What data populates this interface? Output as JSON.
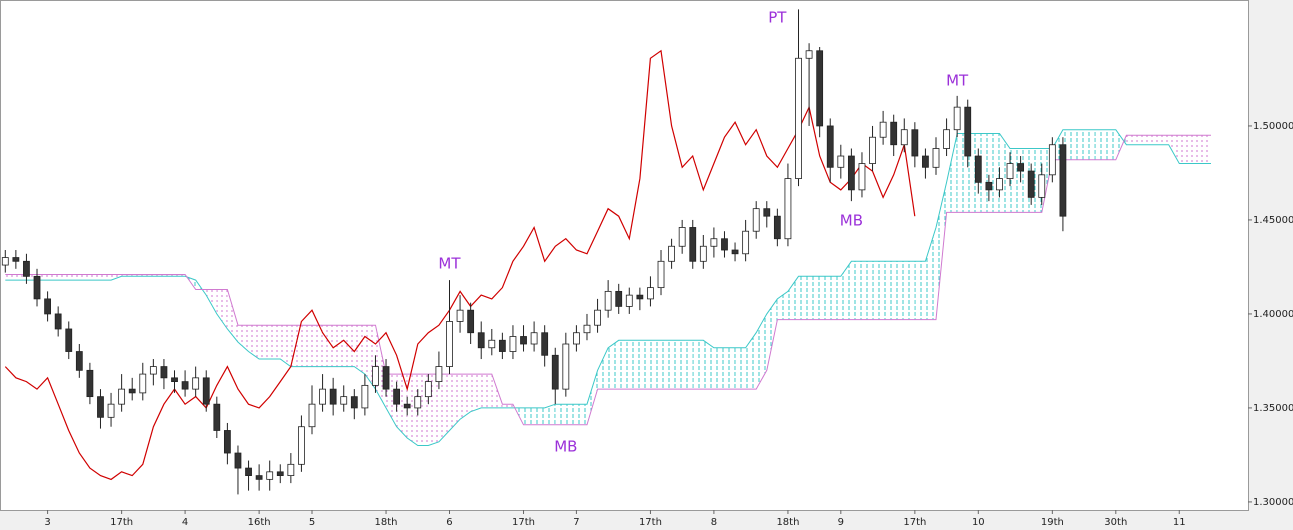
{
  "chart_data": {
    "type": "candlestick",
    "categories": [
      null,
      null,
      null,
      null,
      "3",
      null,
      null,
      null,
      null,
      null,
      null,
      "17th",
      null,
      null,
      null,
      null,
      null,
      "4",
      null,
      null,
      null,
      null,
      null,
      null,
      "16th",
      null,
      null,
      null,
      null,
      "5",
      null,
      null,
      null,
      null,
      null,
      null,
      "18th",
      null,
      null,
      null,
      null,
      null,
      "6",
      null,
      null,
      null,
      null,
      null,
      null,
      "17th",
      null,
      null,
      null,
      null,
      "7",
      null,
      null,
      null,
      null,
      null,
      null,
      "17th",
      null,
      null,
      null,
      null,
      null,
      "8",
      null,
      null,
      null,
      null,
      null,
      null,
      "18th",
      null,
      null,
      null,
      null,
      "9",
      null,
      null,
      null,
      null,
      null,
      null,
      "17th",
      null,
      null,
      null,
      null,
      null,
      "10",
      null,
      null,
      null,
      null,
      null,
      null,
      "19th",
      null,
      null,
      null,
      null,
      null,
      "30th",
      null,
      null,
      null,
      null,
      null,
      "11",
      null,
      null,
      null,
      null,
      null,
      null
    ],
    "open": [
      1.426,
      1.43,
      1.428,
      1.42,
      1.408,
      1.4,
      1.392,
      1.38,
      1.37,
      1.356,
      1.345,
      1.352,
      1.36,
      1.358,
      1.368,
      1.372,
      1.366,
      1.364,
      1.36,
      1.366,
      1.352,
      1.338,
      1.326,
      1.318,
      1.314,
      1.312,
      1.316,
      1.314,
      1.32,
      1.34,
      1.352,
      1.36,
      1.352,
      1.356,
      1.35,
      1.362,
      1.372,
      1.36,
      1.352,
      1.35,
      1.356,
      1.364,
      1.372,
      1.396,
      1.402,
      1.39,
      1.382,
      1.386,
      1.38,
      1.388,
      1.384,
      1.39,
      1.378,
      1.36,
      1.384,
      1.39,
      1.394,
      1.402,
      1.412,
      1.404,
      1.41,
      1.408,
      1.414,
      1.428,
      1.436,
      1.446,
      1.428,
      1.436,
      1.44,
      1.434,
      1.432,
      1.444,
      1.456,
      1.452,
      1.44,
      1.472,
      1.536,
      1.54,
      1.5,
      1.478,
      1.484,
      1.466,
      1.48,
      1.494,
      1.502,
      1.49,
      1.498,
      1.484,
      1.478,
      1.488,
      1.498,
      1.51,
      1.484,
      1.47,
      1.466,
      1.472,
      1.48,
      1.476,
      1.462,
      1.474,
      1.49,
      null,
      null,
      null,
      null,
      null,
      null,
      null,
      null,
      null,
      null,
      null,
      null,
      null,
      null,
      null,
      null,
      null
    ],
    "high": [
      1.434,
      1.434,
      1.432,
      1.424,
      1.412,
      1.404,
      1.396,
      1.384,
      1.374,
      1.36,
      1.358,
      1.368,
      1.366,
      1.374,
      1.376,
      1.376,
      1.37,
      1.37,
      1.372,
      1.37,
      1.356,
      1.342,
      1.33,
      1.322,
      1.32,
      1.322,
      1.32,
      1.326,
      1.346,
      1.362,
      1.368,
      1.366,
      1.362,
      1.36,
      1.368,
      1.378,
      1.376,
      1.364,
      1.356,
      1.36,
      1.368,
      1.38,
      1.418,
      1.41,
      1.406,
      1.396,
      1.392,
      1.39,
      1.394,
      1.394,
      1.396,
      1.394,
      1.382,
      1.39,
      1.394,
      1.4,
      1.408,
      1.418,
      1.416,
      1.414,
      1.414,
      1.42,
      1.434,
      1.44,
      1.45,
      1.45,
      1.442,
      1.446,
      1.444,
      1.438,
      1.45,
      1.46,
      1.46,
      1.456,
      1.48,
      1.562,
      1.544,
      1.542,
      1.504,
      1.49,
      1.488,
      1.486,
      1.5,
      1.508,
      1.506,
      1.504,
      1.502,
      1.488,
      1.494,
      1.504,
      1.516,
      1.514,
      1.488,
      1.474,
      1.478,
      1.486,
      1.484,
      1.48,
      1.48,
      1.494,
      1.494,
      null,
      null,
      null,
      null,
      null,
      null,
      null,
      null,
      null,
      null,
      null,
      null,
      null,
      null,
      null,
      null,
      null
    ],
    "low": [
      1.422,
      1.424,
      1.416,
      1.404,
      1.396,
      1.388,
      1.376,
      1.366,
      1.352,
      1.339,
      1.34,
      1.348,
      1.354,
      1.354,
      1.362,
      1.36,
      1.358,
      1.356,
      1.356,
      1.348,
      1.334,
      1.32,
      1.304,
      1.306,
      1.306,
      1.306,
      1.31,
      1.31,
      1.316,
      1.336,
      1.348,
      1.346,
      1.348,
      1.344,
      1.346,
      1.358,
      1.356,
      1.348,
      1.346,
      1.346,
      1.352,
      1.36,
      1.368,
      1.39,
      1.384,
      1.376,
      1.378,
      1.376,
      1.376,
      1.38,
      1.38,
      1.372,
      1.352,
      1.356,
      1.38,
      1.386,
      1.39,
      1.398,
      1.4,
      1.4,
      1.402,
      1.404,
      1.41,
      1.424,
      1.432,
      1.424,
      1.424,
      1.43,
      1.43,
      1.428,
      1.428,
      1.44,
      1.446,
      1.436,
      1.436,
      1.468,
      1.5,
      1.494,
      1.47,
      1.472,
      1.46,
      1.462,
      1.476,
      1.49,
      1.484,
      1.486,
      1.478,
      1.472,
      1.474,
      1.484,
      1.494,
      1.478,
      1.464,
      1.46,
      1.462,
      1.468,
      1.47,
      1.458,
      1.458,
      1.47,
      1.444,
      null,
      null,
      null,
      null,
      null,
      null,
      null,
      null,
      null,
      null,
      null,
      null,
      null,
      null,
      null,
      null,
      null
    ],
    "close": [
      1.43,
      1.428,
      1.42,
      1.408,
      1.4,
      1.392,
      1.38,
      1.37,
      1.356,
      1.345,
      1.352,
      1.36,
      1.358,
      1.368,
      1.372,
      1.366,
      1.364,
      1.36,
      1.366,
      1.352,
      1.338,
      1.326,
      1.318,
      1.314,
      1.312,
      1.316,
      1.314,
      1.32,
      1.34,
      1.352,
      1.36,
      1.352,
      1.356,
      1.35,
      1.362,
      1.372,
      1.36,
      1.352,
      1.35,
      1.356,
      1.364,
      1.372,
      1.396,
      1.402,
      1.39,
      1.382,
      1.386,
      1.38,
      1.388,
      1.384,
      1.39,
      1.378,
      1.36,
      1.384,
      1.39,
      1.394,
      1.402,
      1.412,
      1.404,
      1.41,
      1.408,
      1.414,
      1.428,
      1.436,
      1.446,
      1.428,
      1.436,
      1.44,
      1.434,
      1.432,
      1.444,
      1.456,
      1.452,
      1.44,
      1.472,
      1.536,
      1.54,
      1.5,
      1.478,
      1.484,
      1.466,
      1.48,
      1.494,
      1.502,
      1.49,
      1.498,
      1.484,
      1.478,
      1.488,
      1.498,
      1.51,
      1.484,
      1.47,
      1.466,
      1.472,
      1.48,
      1.476,
      1.462,
      1.474,
      1.49,
      1.452,
      null,
      null,
      null,
      null,
      null,
      null,
      null,
      null,
      null,
      null,
      null,
      null,
      null,
      null,
      null,
      null,
      null
    ],
    "chikou": {
      "color": "#d00000",
      "values": [
        1.372,
        1.366,
        1.364,
        1.36,
        1.366,
        1.352,
        1.338,
        1.326,
        1.318,
        1.314,
        1.312,
        1.316,
        1.314,
        1.32,
        1.34,
        1.352,
        1.36,
        1.352,
        1.356,
        1.35,
        1.362,
        1.372,
        1.36,
        1.352,
        1.35,
        1.356,
        1.364,
        1.372,
        1.396,
        1.402,
        1.39,
        1.382,
        1.386,
        1.38,
        1.388,
        1.384,
        1.39,
        1.378,
        1.36,
        1.384,
        1.39,
        1.394,
        1.402,
        1.412,
        1.404,
        1.41,
        1.408,
        1.414,
        1.428,
        1.436,
        1.446,
        1.428,
        1.436,
        1.44,
        1.434,
        1.432,
        1.444,
        1.456,
        1.452,
        1.44,
        1.472,
        1.536,
        1.54,
        1.5,
        1.478,
        1.484,
        1.466,
        1.48,
        1.494,
        1.502,
        1.49,
        1.498,
        1.484,
        1.478,
        1.488,
        1.498,
        1.51,
        1.484,
        1.47,
        1.466,
        1.472,
        1.48,
        1.476,
        1.462,
        1.474,
        1.49,
        1.452,
        null,
        null,
        null,
        null,
        null,
        null,
        null,
        null,
        null,
        null,
        null,
        null,
        null,
        null,
        null,
        null,
        null,
        null,
        null,
        null,
        null,
        null,
        null,
        null,
        null,
        null,
        null,
        null,
        null,
        null,
        null
      ]
    },
    "span_a": {
      "color": "#3cc8c8",
      "values": [
        1.418,
        1.418,
        1.418,
        1.418,
        1.418,
        1.418,
        1.418,
        1.418,
        1.418,
        1.418,
        1.418,
        1.42,
        1.42,
        1.42,
        1.42,
        1.42,
        1.42,
        1.42,
        1.418,
        1.41,
        1.4,
        1.392,
        1.385,
        1.38,
        1.376,
        1.376,
        1.376,
        1.372,
        1.372,
        1.372,
        1.372,
        1.372,
        1.372,
        1.372,
        1.368,
        1.36,
        1.35,
        1.34,
        1.334,
        1.33,
        1.33,
        1.332,
        1.338,
        1.344,
        1.348,
        1.35,
        1.35,
        1.35,
        1.35,
        1.35,
        1.35,
        1.35,
        1.352,
        1.352,
        1.352,
        1.352,
        1.37,
        1.382,
        1.386,
        1.386,
        1.386,
        1.386,
        1.386,
        1.386,
        1.386,
        1.386,
        1.386,
        1.382,
        1.382,
        1.382,
        1.382,
        1.39,
        1.4,
        1.408,
        1.412,
        1.42,
        1.42,
        1.42,
        1.42,
        1.42,
        1.428,
        1.428,
        1.428,
        1.428,
        1.428,
        1.428,
        1.428,
        1.428,
        1.446,
        1.47,
        1.496,
        1.496,
        1.496,
        1.496,
        1.496,
        1.488,
        1.488,
        1.488,
        1.488,
        1.488,
        1.498,
        1.498,
        1.498,
        1.498,
        1.498,
        1.498,
        1.49,
        1.49,
        1.49,
        1.49,
        1.49,
        1.48,
        1.48,
        1.48,
        1.48,
        null,
        null,
        null
      ]
    },
    "span_b": {
      "color": "#d07ad0",
      "values": [
        1.421,
        1.421,
        1.421,
        1.421,
        1.421,
        1.421,
        1.421,
        1.421,
        1.421,
        1.421,
        1.421,
        1.421,
        1.421,
        1.421,
        1.421,
        1.421,
        1.421,
        1.421,
        1.413,
        1.413,
        1.413,
        1.413,
        1.394,
        1.394,
        1.394,
        1.394,
        1.394,
        1.394,
        1.394,
        1.394,
        1.394,
        1.394,
        1.394,
        1.394,
        1.394,
        1.394,
        1.368,
        1.368,
        1.368,
        1.368,
        1.368,
        1.368,
        1.368,
        1.368,
        1.368,
        1.368,
        1.368,
        1.352,
        1.352,
        1.341,
        1.341,
        1.341,
        1.341,
        1.341,
        1.341,
        1.341,
        1.36,
        1.36,
        1.36,
        1.36,
        1.36,
        1.36,
        1.36,
        1.36,
        1.36,
        1.36,
        1.36,
        1.36,
        1.36,
        1.36,
        1.36,
        1.36,
        1.37,
        1.397,
        1.397,
        1.397,
        1.397,
        1.397,
        1.397,
        1.397,
        1.397,
        1.397,
        1.397,
        1.397,
        1.397,
        1.397,
        1.397,
        1.397,
        1.397,
        1.454,
        1.454,
        1.454,
        1.454,
        1.454,
        1.454,
        1.454,
        1.454,
        1.454,
        1.454,
        1.482,
        1.482,
        1.482,
        1.482,
        1.482,
        1.482,
        1.482,
        1.495,
        1.495,
        1.495,
        1.495,
        1.495,
        1.495,
        1.495,
        1.495,
        1.495,
        null,
        null,
        null
      ]
    },
    "up_color": "#ffffff",
    "down_color": "#333333",
    "annotation_color": "#9b30d9",
    "annotations": [
      {
        "text": "PT",
        "x": 73,
        "y": 1.5575
      },
      {
        "text": "MT",
        "x": 42,
        "y": 1.4266
      },
      {
        "text": "MT",
        "x": 90,
        "y": 1.524
      },
      {
        "text": "MB",
        "x": 80,
        "y": 1.4495
      },
      {
        "text": "MB",
        "x": 53,
        "y": 1.3293
      }
    ],
    "ylim": [
      1.2957,
      1.567
    ],
    "yticks": [
      {
        "value": 1.3,
        "label": "1.30000"
      },
      {
        "value": 1.35,
        "label": "1.35000"
      },
      {
        "value": 1.4,
        "label": "1.40000"
      },
      {
        "value": 1.45,
        "label": "1.45000"
      },
      {
        "value": 1.5,
        "label": "1.50000"
      }
    ]
  }
}
